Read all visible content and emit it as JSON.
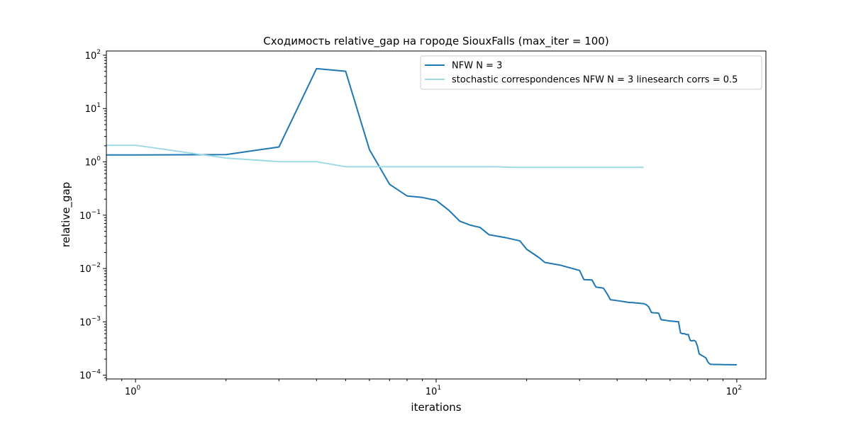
{
  "chart_data": {
    "type": "line",
    "title": "Сходимость relative_gap на городе SiouxFalls  (max_iter = 100)",
    "xlabel": "iterations",
    "ylabel": "relative_gap",
    "x_scale": "log",
    "y_scale": "log",
    "xlim": [
      0.8,
      125
    ],
    "ylim": [
      8.5e-05,
      120
    ],
    "x_ticks": [
      {
        "value": 1,
        "base": "10",
        "exp": "0"
      },
      {
        "value": 10,
        "base": "10",
        "exp": "1"
      },
      {
        "value": 100,
        "base": "10",
        "exp": "2"
      }
    ],
    "y_ticks": [
      {
        "value": 0.0001,
        "base": "10",
        "exp": "−4"
      },
      {
        "value": 0.001,
        "base": "10",
        "exp": "−3"
      },
      {
        "value": 0.01,
        "base": "10",
        "exp": "−2"
      },
      {
        "value": 0.1,
        "base": "10",
        "exp": "−1"
      },
      {
        "value": 1,
        "base": "10",
        "exp": "0"
      },
      {
        "value": 10,
        "base": "10",
        "exp": "1"
      },
      {
        "value": 100,
        "base": "10",
        "exp": "2"
      }
    ],
    "grid": false,
    "legend_position": "top-right",
    "series": [
      {
        "name": "NFW N = 3",
        "color": "#1f77b4",
        "x": [
          0.8,
          1,
          2,
          3,
          4,
          5,
          6,
          7,
          8,
          9,
          10,
          11,
          12,
          13,
          14,
          15,
          17,
          19,
          20,
          22,
          23,
          26,
          30,
          31,
          33,
          34,
          36,
          37,
          38,
          40,
          42,
          44,
          45,
          46,
          47,
          48,
          49,
          50,
          51,
          52,
          53,
          54,
          55,
          56,
          57,
          58,
          59,
          60,
          61,
          62,
          63,
          64,
          65,
          66,
          67,
          68,
          69,
          70,
          71,
          72,
          73,
          74,
          75,
          76,
          77,
          78,
          79,
          80,
          81,
          82,
          85,
          90,
          100
        ],
        "y": [
          1.35,
          1.35,
          1.37,
          1.9,
          56,
          50,
          1.7,
          0.38,
          0.23,
          0.215,
          0.19,
          0.125,
          0.077,
          0.065,
          0.059,
          0.043,
          0.038,
          0.033,
          0.023,
          0.016,
          0.013,
          0.0115,
          0.0092,
          0.0062,
          0.0061,
          0.0045,
          0.0043,
          0.0034,
          0.0026,
          0.0025,
          0.0024,
          0.0023,
          0.0023,
          0.00227,
          0.00225,
          0.00222,
          0.0022,
          0.0021,
          0.0019,
          0.0015,
          0.00148,
          0.00147,
          0.00145,
          0.0011,
          0.00108,
          0.00107,
          0.00105,
          0.00104,
          0.00103,
          0.00102,
          0.00101,
          0.00101,
          0.00062,
          0.0006,
          0.0006,
          0.00058,
          0.00058,
          0.00045,
          0.00044,
          0.00045,
          0.00043,
          0.00035,
          0.00025,
          0.00024,
          0.00023,
          0.00022,
          0.00021,
          0.00018,
          0.000165,
          0.00016,
          0.000159,
          0.000158,
          0.000157
        ]
      },
      {
        "name": "stochastic correspondences NFW N = 3 linesearch corrs = 0.5",
        "color": "#9edae5",
        "x": [
          0.8,
          1,
          2,
          3,
          4,
          5,
          6,
          7,
          8,
          9,
          10,
          12,
          14,
          16,
          17,
          18,
          20,
          25,
          30,
          35,
          40,
          45,
          49
        ],
        "y": [
          2.05,
          2.05,
          1.18,
          1.01,
          1.01,
          0.81,
          0.81,
          0.81,
          0.81,
          0.81,
          0.81,
          0.81,
          0.81,
          0.81,
          0.8,
          0.79,
          0.79,
          0.79,
          0.79,
          0.79,
          0.79,
          0.79,
          0.79
        ]
      }
    ]
  }
}
